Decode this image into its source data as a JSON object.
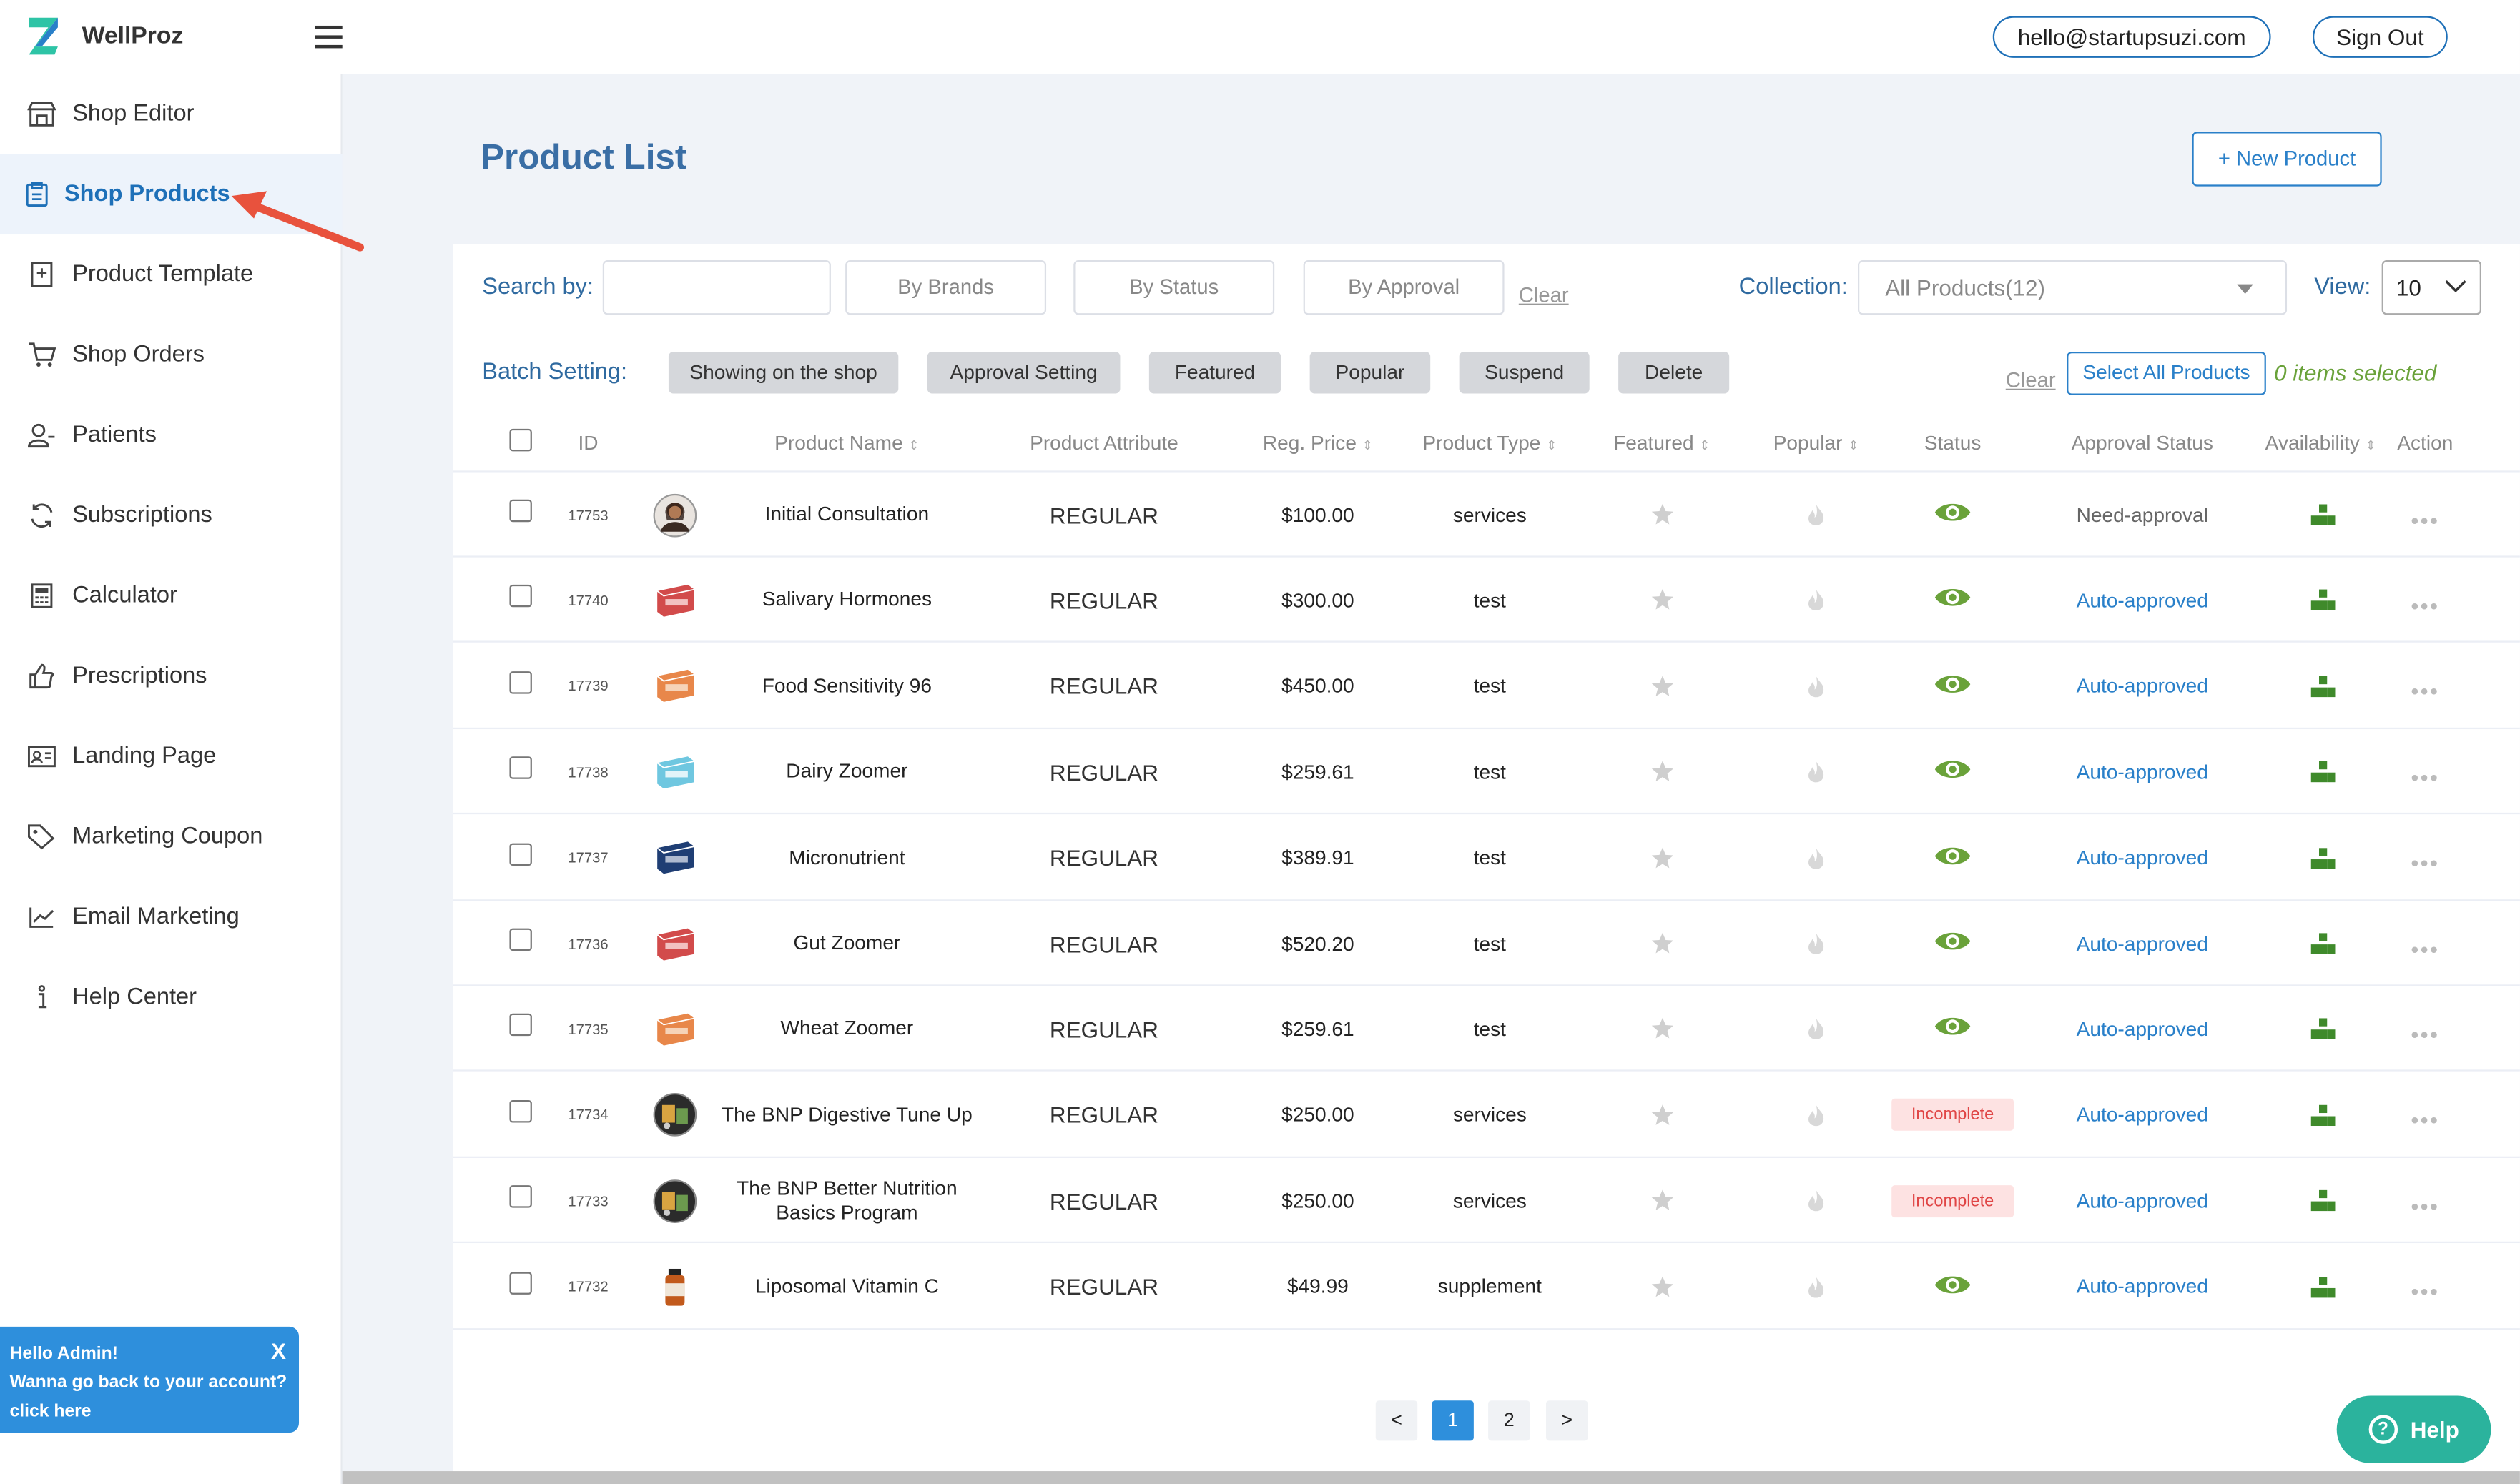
{
  "app": {
    "name": "WellProz"
  },
  "header": {
    "email": "hello@startupsuzi.com",
    "sign_out": "Sign Out"
  },
  "sidebar": {
    "items": [
      {
        "label": "Shop Editor",
        "icon": "store-icon"
      },
      {
        "label": "Shop Products",
        "icon": "clipboard-icon",
        "active": true
      },
      {
        "label": "Product Template",
        "icon": "add-document-icon"
      },
      {
        "label": "Shop Orders",
        "icon": "cart-icon"
      },
      {
        "label": "Patients",
        "icon": "user-icon"
      },
      {
        "label": "Subscriptions",
        "icon": "refresh-icon"
      },
      {
        "label": "Calculator",
        "icon": "calculator-icon"
      },
      {
        "label": "Prescriptions",
        "icon": "thumbs-up-icon"
      },
      {
        "label": "Landing Page",
        "icon": "id-card-icon"
      },
      {
        "label": "Marketing Coupon",
        "icon": "tag-icon"
      },
      {
        "label": "Email Marketing",
        "icon": "chart-line-icon"
      },
      {
        "label": "Help Center",
        "icon": "info-icon"
      }
    ]
  },
  "admin_notice": {
    "line1": "Hello Admin!",
    "line2": "Wanna go back to your account?",
    "line3": "click here",
    "close": "X"
  },
  "page": {
    "title": "Product List",
    "new_button": "+ New Product"
  },
  "filters": {
    "search_label": "Search by:",
    "search_value": "",
    "by_brands": "By Brands",
    "by_status": "By Status",
    "by_approval": "By Approval",
    "clear": "Clear",
    "collection_label": "Collection:",
    "collection_value": "All Products(12)",
    "view_label": "View:",
    "view_value": "10"
  },
  "batch": {
    "label": "Batch Setting:",
    "buttons": [
      "Showing on the shop",
      "Approval Setting",
      "Featured",
      "Popular",
      "Suspend",
      "Delete"
    ],
    "clear": "Clear",
    "select_all": "Select All Products",
    "selected_count": "0 items selected"
  },
  "table": {
    "columns": [
      "ID",
      "Product Name",
      "Product Attribute",
      "Reg. Price",
      "Product Type",
      "Featured",
      "Popular",
      "Status",
      "Approval Status",
      "Availability",
      "Action"
    ],
    "sort_glyph": "⇕",
    "rows": [
      {
        "id": "17753",
        "name": "Initial Consultation",
        "attribute": "REGULAR",
        "price": "$100.00",
        "type": "services",
        "status": "visible",
        "approval": "Need-approval",
        "thumb": "portrait"
      },
      {
        "id": "17740",
        "name": "Salivary Hormones",
        "attribute": "REGULAR",
        "price": "$300.00",
        "type": "test",
        "status": "visible",
        "approval": "Auto-approved",
        "thumb": "box-red"
      },
      {
        "id": "17739",
        "name": "Food Sensitivity 96",
        "attribute": "REGULAR",
        "price": "$450.00",
        "type": "test",
        "status": "visible",
        "approval": "Auto-approved",
        "thumb": "box-orange"
      },
      {
        "id": "17738",
        "name": "Dairy Zoomer",
        "attribute": "REGULAR",
        "price": "$259.61",
        "type": "test",
        "status": "visible",
        "approval": "Auto-approved",
        "thumb": "box-cyan"
      },
      {
        "id": "17737",
        "name": "Micronutrient",
        "attribute": "REGULAR",
        "price": "$389.91",
        "type": "test",
        "status": "visible",
        "approval": "Auto-approved",
        "thumb": "box-navy"
      },
      {
        "id": "17736",
        "name": "Gut Zoomer",
        "attribute": "REGULAR",
        "price": "$520.20",
        "type": "test",
        "status": "visible",
        "approval": "Auto-approved",
        "thumb": "box-red"
      },
      {
        "id": "17735",
        "name": "Wheat Zoomer",
        "attribute": "REGULAR",
        "price": "$259.61",
        "type": "test",
        "status": "visible",
        "approval": "Auto-approved",
        "thumb": "box-orange"
      },
      {
        "id": "17734",
        "name": "The BNP Digestive Tune Up",
        "attribute": "REGULAR",
        "price": "$250.00",
        "type": "services",
        "status": "Incomplete",
        "approval": "Auto-approved",
        "thumb": "circle-dark"
      },
      {
        "id": "17733",
        "name": "The BNP Better Nutrition Basics Program",
        "attribute": "REGULAR",
        "price": "$250.00",
        "type": "services",
        "status": "Incomplete",
        "approval": "Auto-approved",
        "thumb": "circle-dark"
      },
      {
        "id": "17732",
        "name": "Liposomal Vitamin C",
        "attribute": "REGULAR",
        "price": "$49.99",
        "type": "supplement",
        "status": "visible",
        "approval": "Auto-approved",
        "thumb": "bottle"
      }
    ]
  },
  "pagination": {
    "prev": "<",
    "pages": [
      "1",
      "2"
    ],
    "current": "1",
    "next": ">"
  },
  "help": {
    "label": "Help"
  },
  "colors": {
    "primary": "#2a80c9",
    "title": "#3a6ea5",
    "green": "#6aa23a",
    "badge_bg": "#fde2e2",
    "badge_text": "#e04646",
    "help": "#2bb39d"
  }
}
